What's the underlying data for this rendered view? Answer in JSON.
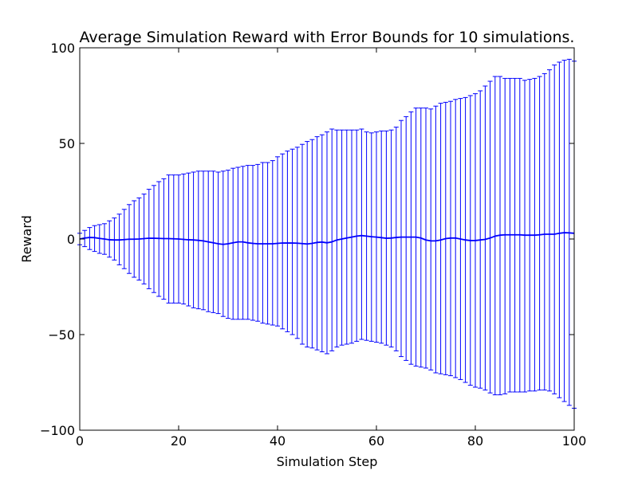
{
  "chart_data": {
    "type": "line",
    "title": "Average Simulation Reward with Error Bounds for 10 simulations.",
    "xlabel": "Simulation Step",
    "ylabel": "Reward",
    "xlim": [
      0,
      100
    ],
    "ylim": [
      -100,
      100
    ],
    "xticks": [
      "0",
      "20",
      "40",
      "60",
      "80",
      "100"
    ],
    "yticks": [
      "100",
      "50",
      "0",
      "−50",
      "−100"
    ],
    "xtick_values": [
      0,
      20,
      40,
      60,
      80,
      100
    ],
    "ytick_values": [
      100,
      50,
      0,
      -50,
      -100
    ],
    "grid": false,
    "colors": {
      "series": "#0000ff",
      "axes": "#000000",
      "background": "#ffffff"
    },
    "series": [
      {
        "x": [
          0,
          1,
          2,
          3,
          4,
          5,
          6,
          7,
          8,
          9,
          10,
          11,
          12,
          13,
          14,
          15,
          16,
          17,
          18,
          19,
          20,
          21,
          22,
          23,
          24,
          25,
          26,
          27,
          28,
          29,
          30,
          31,
          32,
          33,
          34,
          35,
          36,
          37,
          38,
          39,
          40,
          41,
          42,
          43,
          44,
          45,
          46,
          47,
          48,
          49,
          50,
          51,
          52,
          53,
          54,
          55,
          56,
          57,
          58,
          59,
          60,
          61,
          62,
          63,
          64,
          65,
          66,
          67,
          68,
          69,
          70,
          71,
          72,
          73,
          74,
          75,
          76,
          77,
          78,
          79,
          80,
          81,
          82,
          83,
          84,
          85,
          86,
          87,
          88,
          89,
          90,
          91,
          92,
          93,
          94,
          95,
          96,
          97,
          98,
          99,
          100
        ],
        "mean": [
          0.0,
          0.5,
          0.8,
          0.7,
          0.3,
          0.0,
          -0.4,
          -0.5,
          -0.5,
          -0.3,
          -0.1,
          -0.1,
          0.0,
          0.2,
          0.4,
          0.4,
          0.3,
          0.2,
          0.2,
          0.1,
          0.0,
          -0.2,
          -0.4,
          -0.5,
          -0.7,
          -1.0,
          -1.5,
          -2.0,
          -2.5,
          -2.8,
          -2.5,
          -2.0,
          -1.5,
          -1.5,
          -2.0,
          -2.3,
          -2.5,
          -2.5,
          -2.5,
          -2.5,
          -2.3,
          -2.1,
          -2.1,
          -2.1,
          -2.2,
          -2.4,
          -2.6,
          -2.3,
          -1.8,
          -1.6,
          -2.0,
          -1.5,
          -0.5,
          0.0,
          0.5,
          1.0,
          1.5,
          1.8,
          1.5,
          1.2,
          1.0,
          0.7,
          0.4,
          0.5,
          0.8,
          1.0,
          1.0,
          1.0,
          1.0,
          0.5,
          -0.5,
          -1.0,
          -1.0,
          -0.5,
          0.2,
          0.5,
          0.5,
          0.0,
          -0.5,
          -0.8,
          -0.8,
          -0.5,
          -0.2,
          0.5,
          1.5,
          2.0,
          2.2,
          2.2,
          2.2,
          2.2,
          2.0,
          2.0,
          2.0,
          2.2,
          2.5,
          2.5,
          2.5,
          3.0,
          3.3,
          3.2,
          3.0
        ],
        "upper": [
          3.0,
          4.5,
          6.0,
          7.0,
          7.5,
          8.0,
          9.5,
          11.0,
          13.0,
          15.5,
          18.0,
          20.0,
          21.5,
          23.5,
          26.0,
          28.0,
          30.0,
          31.5,
          33.5,
          33.5,
          33.5,
          34.0,
          34.5,
          35.0,
          35.5,
          35.5,
          35.5,
          35.5,
          35.0,
          35.5,
          36.0,
          37.0,
          37.5,
          38.0,
          38.5,
          38.5,
          39.0,
          40.0,
          40.0,
          41.0,
          43.0,
          44.5,
          46.0,
          47.0,
          48.0,
          49.5,
          51.0,
          52.0,
          53.5,
          54.5,
          56.0,
          57.5,
          57.0,
          57.0,
          57.0,
          57.0,
          57.0,
          57.5,
          56.0,
          55.5,
          56.0,
          56.5,
          56.5,
          57.0,
          58.5,
          62.0,
          64.0,
          66.5,
          68.5,
          68.5,
          68.5,
          68.0,
          69.5,
          71.0,
          71.5,
          72.0,
          73.0,
          73.5,
          74.0,
          75.0,
          76.0,
          77.5,
          80.0,
          82.5,
          85.0,
          85.0,
          84.0,
          84.0,
          84.0,
          84.0,
          83.0,
          83.5,
          84.0,
          85.0,
          86.5,
          88.5,
          91.0,
          92.5,
          93.5,
          94.0,
          93.0
        ],
        "lower": [
          -3.0,
          -4.0,
          -5.5,
          -6.5,
          -7.5,
          -8.0,
          -9.5,
          -11.0,
          -13.5,
          -15.5,
          -18.0,
          -20.0,
          -21.5,
          -23.5,
          -26.0,
          -28.0,
          -30.0,
          -31.5,
          -33.5,
          -33.5,
          -33.5,
          -34.0,
          -35.0,
          -36.0,
          -36.5,
          -37.0,
          -38.0,
          -38.5,
          -39.0,
          -40.5,
          -41.5,
          -42.0,
          -42.0,
          -42.0,
          -42.0,
          -42.5,
          -43.0,
          -44.0,
          -44.5,
          -45.0,
          -45.5,
          -47.0,
          -48.5,
          -50.0,
          -52.0,
          -55.0,
          -56.5,
          -57.0,
          -58.0,
          -59.0,
          -60.0,
          -58.5,
          -56.5,
          -55.5,
          -55.0,
          -54.5,
          -53.5,
          -52.5,
          -53.0,
          -53.5,
          -54.0,
          -54.5,
          -55.5,
          -56.5,
          -58.5,
          -61.5,
          -63.5,
          -65.5,
          -66.5,
          -67.0,
          -67.5,
          -68.5,
          -70.0,
          -70.5,
          -71.0,
          -71.5,
          -72.5,
          -73.5,
          -75.0,
          -76.5,
          -77.5,
          -78.0,
          -79.0,
          -80.5,
          -81.5,
          -81.5,
          -81.0,
          -80.0,
          -80.0,
          -80.0,
          -80.0,
          -79.5,
          -79.5,
          -79.0,
          -79.0,
          -79.5,
          -81.0,
          -83.0,
          -85.0,
          -87.0,
          -88.5
        ]
      }
    ]
  }
}
